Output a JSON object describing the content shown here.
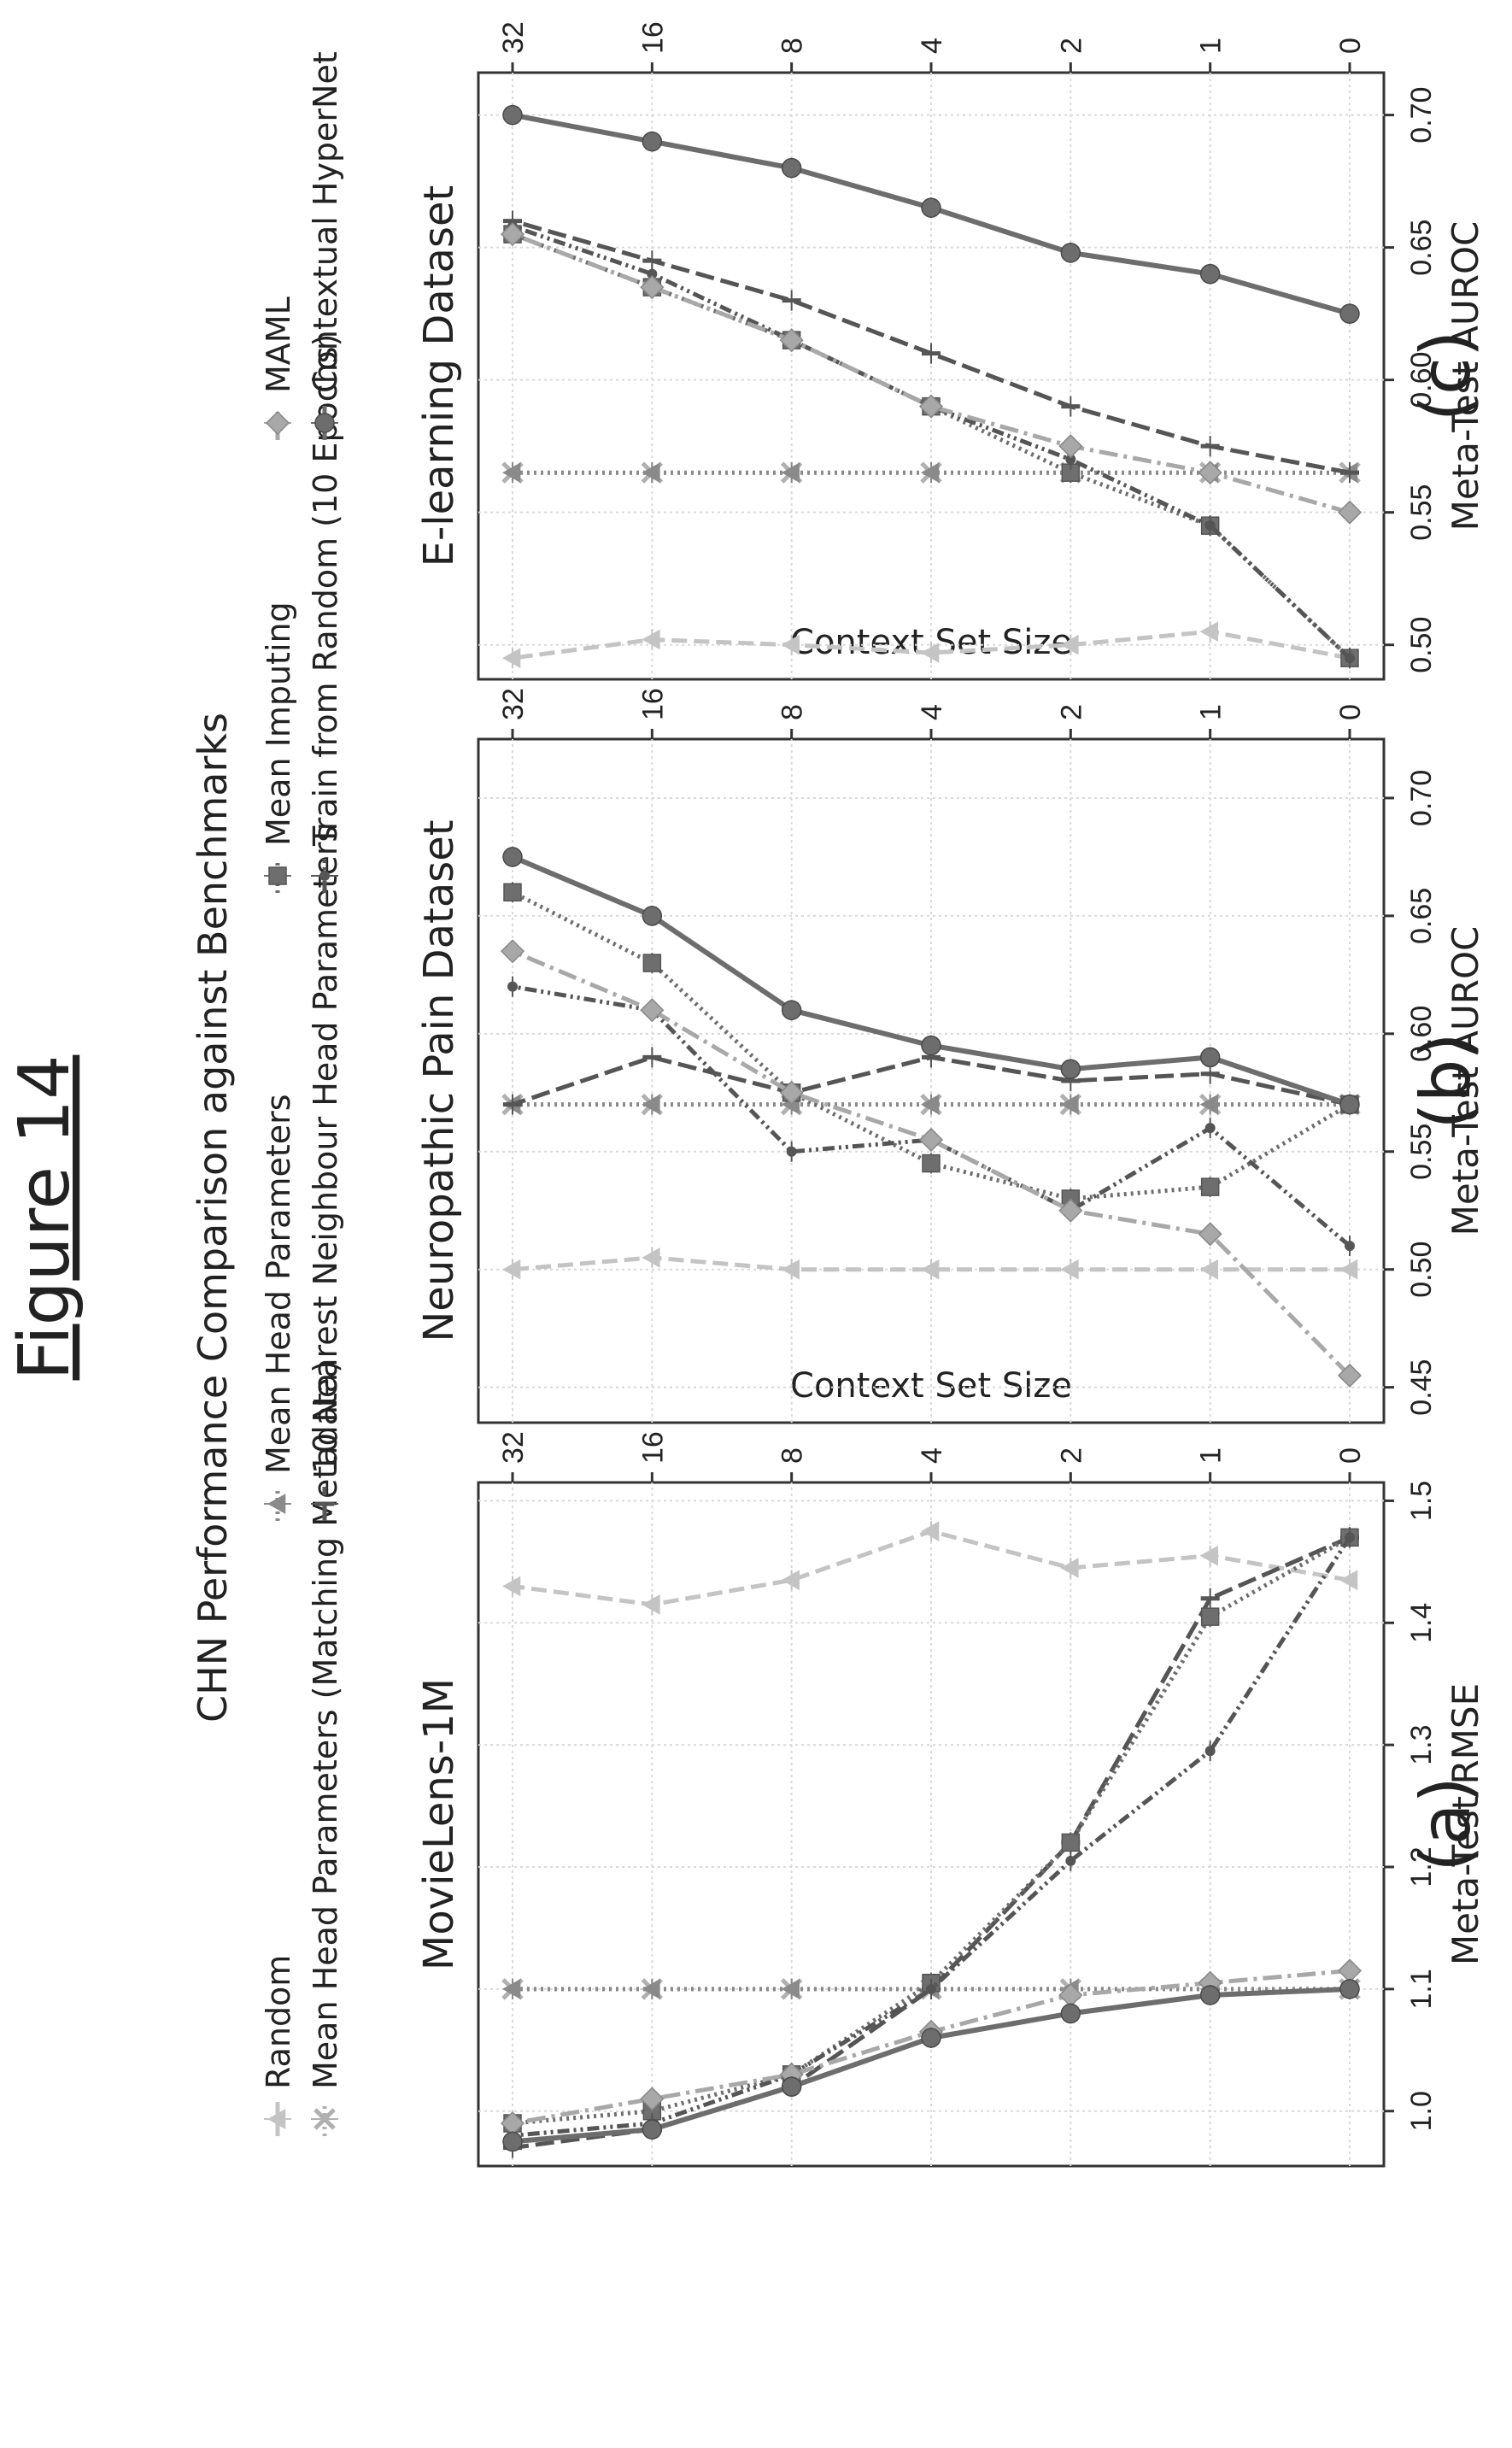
{
  "figure": {
    "title": "Figure 14",
    "subtitle": "CHN Performance Comparison against Benchmarks"
  },
  "legend": [
    {
      "label": "Random",
      "color": "#c4c4c4",
      "dash": "18 8",
      "marker": "tri"
    },
    {
      "label": "Mean Head Parameters (Matching Metadata)",
      "color": "#b0b0b0",
      "dash": "3 5",
      "marker": "x"
    },
    {
      "label": "Mean Head Parameters",
      "color": "#8a8a8a",
      "dash": "3 5",
      "marker": "tri"
    },
    {
      "label": "10 Nearest Neighbour Head Parameters",
      "color": "#555555",
      "dash": "22 8",
      "marker": "tick"
    },
    {
      "label": "Mean Imputing",
      "color": "#6e6e6e",
      "dash": "3 5",
      "marker": "square"
    },
    {
      "label": "Train from Random (10 Epochs)",
      "color": "#555555",
      "dash": "14 5 3 5 3 5",
      "marker": "dot"
    },
    {
      "label": "MAML",
      "color": "#a8a8a8",
      "dash": "22 7 4 7",
      "marker": "diamond"
    },
    {
      "label": "Contextual HyperNet",
      "color": "#6d6d6d",
      "dash": "",
      "marker": "circle"
    }
  ],
  "chart_data": [
    {
      "type": "line",
      "panel_label": "(a)",
      "title": "MovieLens-1M",
      "xlabel": "Context Set Size",
      "ylabel": "Meta-Test RMSE",
      "x": [
        "0",
        "1",
        "2",
        "4",
        "8",
        "16",
        "32"
      ],
      "ylim": [
        0.955,
        1.515
      ],
      "yticks": [
        "1.0",
        "1.1",
        "1.2",
        "1.3",
        "1.4",
        "1.5"
      ],
      "ytick_values": [
        1.0,
        1.1,
        1.2,
        1.3,
        1.4,
        1.5
      ],
      "series": [
        {
          "name": "Random",
          "values": [
            1.435,
            1.455,
            1.445,
            1.475,
            1.435,
            1.415,
            1.43
          ]
        },
        {
          "name": "Mean Head Parameters (Matching Metadata)",
          "values": [
            1.1,
            1.1,
            1.1,
            1.1,
            1.1,
            1.1,
            1.1
          ]
        },
        {
          "name": "Mean Head Parameters",
          "values": [
            1.1,
            1.1,
            1.1,
            1.1,
            1.1,
            1.1,
            1.1
          ]
        },
        {
          "name": "10 Nearest Neighbour Head Parameters",
          "values": [
            1.47,
            1.42,
            1.22,
            1.1,
            1.02,
            0.985,
            0.97
          ]
        },
        {
          "name": "Mean Imputing",
          "values": [
            1.47,
            1.405,
            1.22,
            1.105,
            1.03,
            1.0,
            0.99
          ]
        },
        {
          "name": "Train from Random (10 Epochs)",
          "values": [
            1.47,
            1.295,
            1.205,
            1.1,
            1.03,
            0.99,
            0.98
          ]
        },
        {
          "name": "MAML",
          "values": [
            1.115,
            1.105,
            1.095,
            1.065,
            1.03,
            1.01,
            0.99
          ]
        },
        {
          "name": "Contextual HyperNet",
          "values": [
            1.1,
            1.095,
            1.08,
            1.06,
            1.02,
            0.985,
            0.975
          ]
        }
      ]
    },
    {
      "type": "line",
      "panel_label": "(b)",
      "title": "Neuropathic Pain Dataset",
      "xlabel": "Context Set Size",
      "ylabel": "Meta-Test AUROC",
      "x": [
        "0",
        "1",
        "2",
        "4",
        "8",
        "16",
        "32"
      ],
      "ylim": [
        0.435,
        0.725
      ],
      "yticks": [
        "0.45",
        "0.50",
        "0.55",
        "0.60",
        "0.65",
        "0.70"
      ],
      "ytick_values": [
        0.45,
        0.5,
        0.55,
        0.6,
        0.65,
        0.7
      ],
      "series": [
        {
          "name": "Random",
          "values": [
            0.5,
            0.5,
            0.5,
            0.5,
            0.5,
            0.505,
            0.5
          ]
        },
        {
          "name": "Mean Head Parameters (Matching Metadata)",
          "values": [
            0.57,
            0.57,
            0.57,
            0.57,
            0.57,
            0.57,
            0.57
          ]
        },
        {
          "name": "Mean Head Parameters",
          "values": [
            0.57,
            0.57,
            0.57,
            0.57,
            0.57,
            0.57,
            0.57
          ]
        },
        {
          "name": "10 Nearest Neighbour Head Parameters",
          "values": [
            0.57,
            0.583,
            0.58,
            0.59,
            0.575,
            0.59,
            0.57
          ]
        },
        {
          "name": "Mean Imputing",
          "values": [
            0.57,
            0.535,
            0.53,
            0.545,
            0.575,
            0.63,
            0.66
          ]
        },
        {
          "name": "Train from Random (10 Epochs)",
          "values": [
            0.51,
            0.56,
            0.525,
            0.555,
            0.55,
            0.61,
            0.62
          ]
        },
        {
          "name": "MAML",
          "values": [
            0.455,
            0.515,
            0.525,
            0.555,
            0.575,
            0.61,
            0.635
          ]
        },
        {
          "name": "Contextual HyperNet",
          "values": [
            0.57,
            0.59,
            0.585,
            0.595,
            0.61,
            0.65,
            0.675
          ]
        }
      ]
    },
    {
      "type": "line",
      "panel_label": "(c)",
      "title": "E-learning Dataset",
      "xlabel": "Context Set Size",
      "ylabel": "Meta-Test AUROC",
      "x": [
        "0",
        "1",
        "2",
        "4",
        "8",
        "16",
        "32"
      ],
      "ylim": [
        0.487,
        0.716
      ],
      "yticks": [
        "0.50",
        "0.55",
        "0.60",
        "0.65",
        "0.70"
      ],
      "ytick_values": [
        0.5,
        0.55,
        0.6,
        0.65,
        0.7
      ],
      "series": [
        {
          "name": "Random",
          "values": [
            0.495,
            0.505,
            0.5,
            0.497,
            0.5,
            0.502,
            0.495
          ]
        },
        {
          "name": "Mean Head Parameters (Matching Metadata)",
          "values": [
            0.565,
            0.565,
            0.565,
            0.565,
            0.565,
            0.565,
            0.565
          ]
        },
        {
          "name": "Mean Head Parameters",
          "values": [
            0.565,
            0.565,
            0.565,
            0.565,
            0.565,
            0.565,
            0.565
          ]
        },
        {
          "name": "10 Nearest Neighbour Head Parameters",
          "values": [
            0.565,
            0.575,
            0.59,
            0.61,
            0.63,
            0.645,
            0.66
          ]
        },
        {
          "name": "Mean Imputing",
          "values": [
            0.495,
            0.545,
            0.565,
            0.59,
            0.615,
            0.635,
            0.655
          ]
        },
        {
          "name": "Train from Random (10 Epochs)",
          "values": [
            0.495,
            0.545,
            0.57,
            0.59,
            0.615,
            0.64,
            0.658
          ]
        },
        {
          "name": "MAML",
          "values": [
            0.55,
            0.565,
            0.575,
            0.59,
            0.615,
            0.635,
            0.655
          ]
        },
        {
          "name": "Contextual HyperNet",
          "values": [
            0.625,
            0.64,
            0.648,
            0.665,
            0.68,
            0.69,
            0.7
          ]
        }
      ]
    }
  ]
}
